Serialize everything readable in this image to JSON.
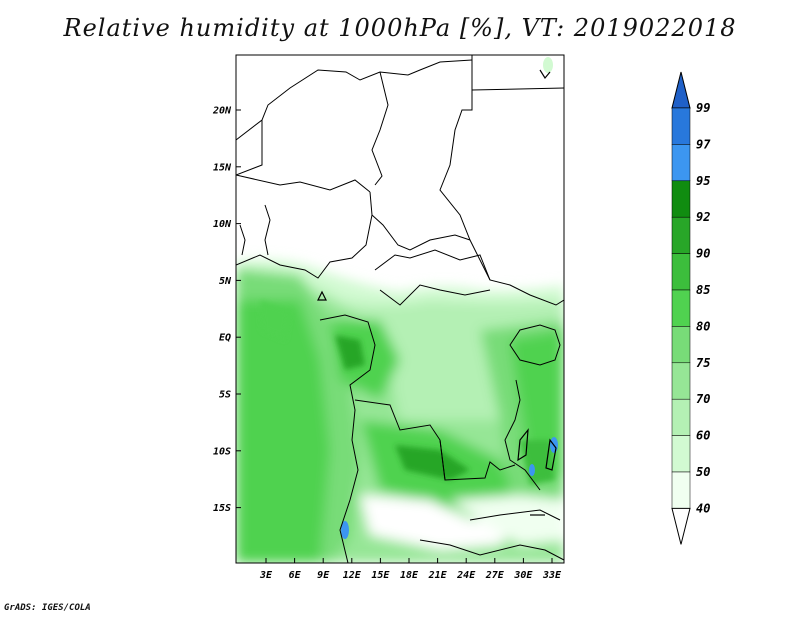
{
  "title": "Relative humidity at 1000hPa [%], VT: 2019022018",
  "footer": "GrADS: IGES/COLA",
  "map": {
    "lat_labels": [
      "20N",
      "15N",
      "10N",
      "5N",
      "EQ",
      "5S",
      "10S",
      "15S"
    ],
    "lon_labels": [
      "3E",
      "6E",
      "9E",
      "12E",
      "15E",
      "18E",
      "21E",
      "24E",
      "27E",
      "30E",
      "33E"
    ]
  },
  "colorbar": {
    "levels": [
      "99",
      "97",
      "95",
      "92",
      "90",
      "85",
      "80",
      "75",
      "70",
      "60",
      "50",
      "40"
    ],
    "colors": {
      "above_99": "#1f60c8",
      "97_99": "#2878dc",
      "95_97": "#3c96f0",
      "92_95": "#108c10",
      "90_92": "#28a628",
      "85_90": "#3cbe3c",
      "80_85": "#50d250",
      "75_80": "#78dc78",
      "70_75": "#96e696",
      "60_70": "#b4f0b4",
      "50_60": "#d2fad2",
      "40_50": "#f0fff0",
      "below_40": "#ffffff"
    }
  }
}
